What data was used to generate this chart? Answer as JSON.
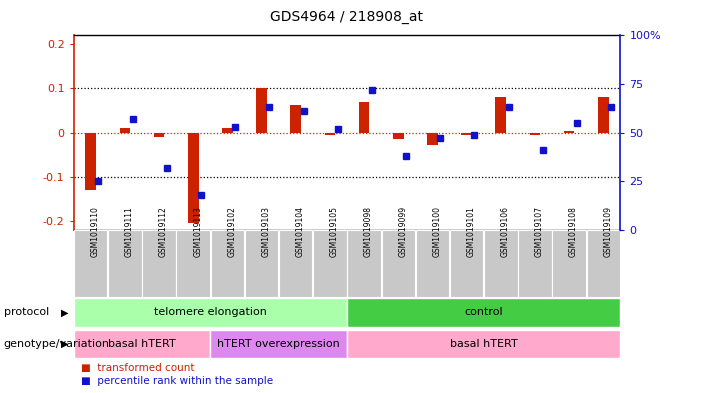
{
  "title": "GDS4964 / 218908_at",
  "samples": [
    "GSM1019110",
    "GSM1019111",
    "GSM1019112",
    "GSM1019113",
    "GSM1019102",
    "GSM1019103",
    "GSM1019104",
    "GSM1019105",
    "GSM1019098",
    "GSM1019099",
    "GSM1019100",
    "GSM1019101",
    "GSM1019106",
    "GSM1019107",
    "GSM1019108",
    "GSM1019109"
  ],
  "red_values": [
    -0.13,
    0.01,
    -0.01,
    -0.205,
    0.01,
    0.1,
    0.063,
    -0.005,
    0.07,
    -0.015,
    -0.028,
    -0.005,
    0.08,
    -0.005,
    0.003,
    0.08
  ],
  "blue_values": [
    25,
    57,
    32,
    18,
    53,
    63,
    61,
    52,
    72,
    38,
    47,
    49,
    63,
    41,
    55,
    63
  ],
  "ylim_left": [
    -0.22,
    0.22
  ],
  "ylim_right": [
    0,
    100
  ],
  "yticks_left": [
    -0.2,
    -0.1,
    0.0,
    0.1,
    0.2
  ],
  "ytick_labels_left": [
    "-0.2",
    "-0.1",
    "0",
    "0.1",
    "0.2"
  ],
  "yticks_right": [
    0,
    25,
    50,
    75,
    100
  ],
  "ytick_labels_right": [
    "0",
    "25",
    "50",
    "75",
    "100%"
  ],
  "red_color": "#cc2200",
  "blue_color": "#1111cc",
  "bar_width": 0.38,
  "tick_bg_color": "#c8c8c8",
  "protocol_groups": [
    {
      "label": "telomere elongation",
      "start": 0,
      "end": 8,
      "color": "#aaffaa"
    },
    {
      "label": "control",
      "start": 8,
      "end": 16,
      "color": "#44cc44"
    }
  ],
  "genotype_groups": [
    {
      "label": "basal hTERT",
      "start": 0,
      "end": 4,
      "color": "#ffaacc"
    },
    {
      "label": "hTERT overexpression",
      "start": 4,
      "end": 8,
      "color": "#dd88ee"
    },
    {
      "label": "basal hTERT",
      "start": 8,
      "end": 16,
      "color": "#ffaacc"
    }
  ],
  "legend_red": "transformed count",
  "legend_blue": "percentile rank within the sample"
}
